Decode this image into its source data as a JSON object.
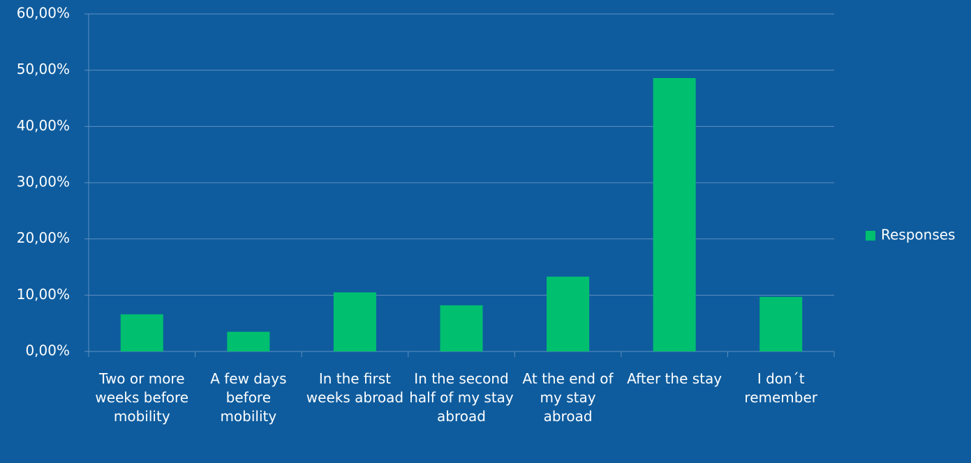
{
  "chart_data": {
    "type": "bar",
    "categories": [
      "Two or more weeks before mobility",
      "A few days before mobility",
      "In the first weeks abroad",
      "In the second half of my stay abroad",
      "At the end of my stay abroad",
      "After the stay",
      "I don´t remember"
    ],
    "series": [
      {
        "name": "Responses",
        "color": "#00bf6f",
        "values": [
          6.6,
          3.5,
          10.5,
          8.2,
          13.3,
          48.6,
          9.7
        ]
      }
    ],
    "ylim": [
      0,
      60
    ],
    "yticks": [
      {
        "value": 0,
        "label": "0,00%"
      },
      {
        "value": 10,
        "label": "10,00%"
      },
      {
        "value": 20,
        "label": "20,00%"
      },
      {
        "value": 30,
        "label": "30,00%"
      },
      {
        "value": 40,
        "label": "40,00%"
      },
      {
        "value": 50,
        "label": "50,00%"
      },
      {
        "value": 60,
        "label": "60,00%"
      }
    ],
    "grid": true,
    "legend": "right"
  }
}
